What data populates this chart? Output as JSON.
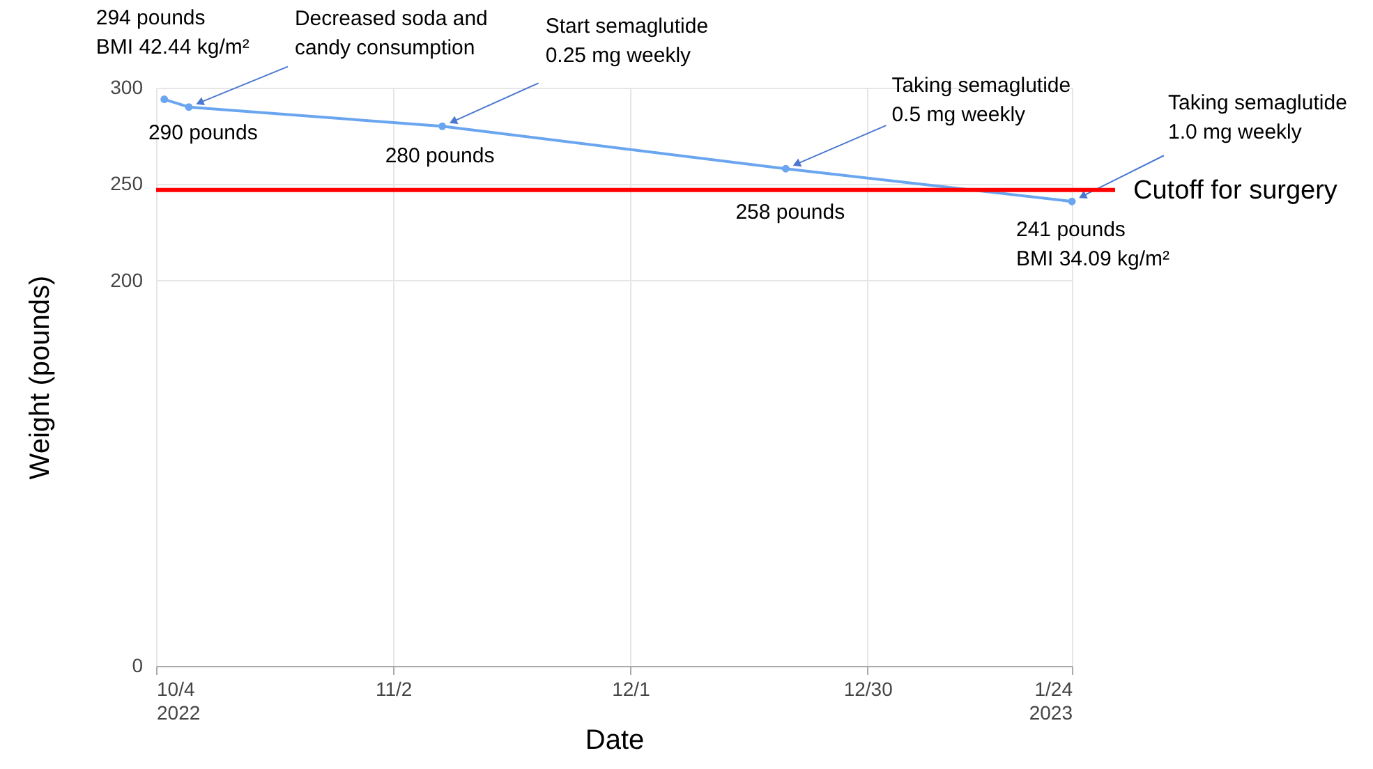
{
  "chart_data": {
    "type": "line",
    "xlabel": "Date",
    "ylabel": "Weight (pounds)",
    "x": [
      "2022-10-05",
      "2022-10-08",
      "2022-11-08",
      "2022-12-20",
      "2023-01-24"
    ],
    "series": [
      {
        "color": "#6aa5f0",
        "values": [
          294,
          290,
          280,
          258,
          241
        ]
      }
    ],
    "marker": "circle",
    "grid": true,
    "xlim": [
      "2022-10-04",
      "2023-01-24"
    ],
    "xticks": [
      {
        "value": "2022-10-04",
        "label": "10/4\n2022"
      },
      {
        "value": "2022-11-02",
        "label": "11/2"
      },
      {
        "value": "2022-12-01",
        "label": "12/1"
      },
      {
        "value": "2022-12-30",
        "label": "12/30"
      },
      {
        "value": "2023-01-24",
        "label": "1/24\n2023"
      }
    ],
    "ylim": [
      0,
      300
    ],
    "yticks": [
      0,
      200,
      250,
      300
    ],
    "ref_lines": [
      {
        "axis": "y",
        "value": 247,
        "label": "Cutoff for surgery",
        "color": "#ff0000"
      }
    ],
    "annotations": [
      {
        "text": "294 pounds\nBMI 42.44 kg/m²",
        "x": "2022-10-05",
        "y": 294
      },
      {
        "text": "290 pounds",
        "x": "2022-10-08",
        "y": 290
      },
      {
        "text": "Decreased soda and\ncandy consumption",
        "x": "2022-10-08",
        "y": 290
      },
      {
        "text": "280 pounds",
        "x": "2022-11-08",
        "y": 280
      },
      {
        "text": "Start semaglutide\n0.25 mg weekly",
        "x": "2022-11-08",
        "y": 280
      },
      {
        "text": "258 pounds",
        "x": "2022-12-20",
        "y": 258
      },
      {
        "text": "Taking semaglutide\n0.5 mg weekly",
        "x": "2022-12-20",
        "y": 258
      },
      {
        "text": "241 pounds\nBMI 34.09 kg/m²",
        "x": "2023-01-24",
        "y": 241
      },
      {
        "text": "Taking semaglutide\n 1.0 mg weekly",
        "x": "2023-01-24",
        "y": 241
      }
    ]
  }
}
